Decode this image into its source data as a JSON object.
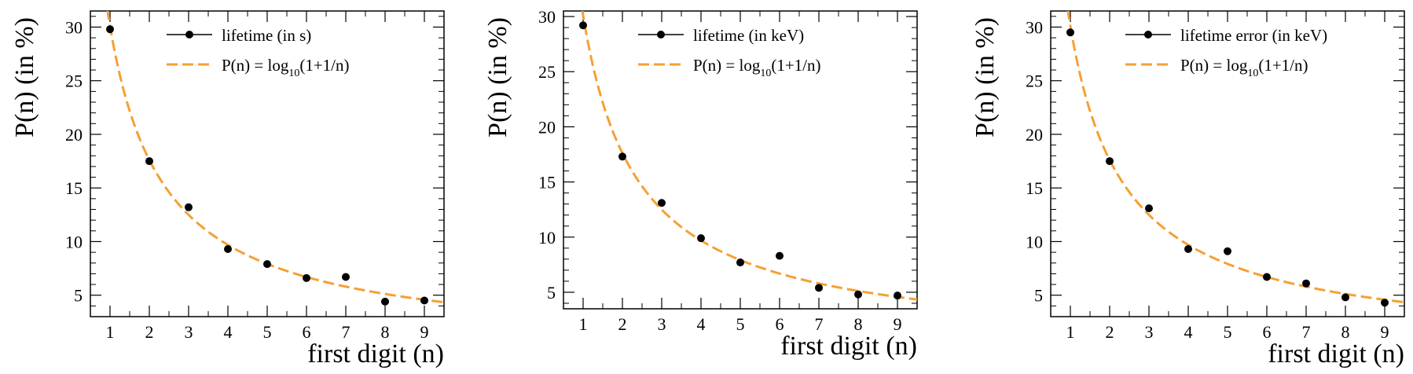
{
  "chart_data": [
    {
      "type": "scatter",
      "xlabel": "first digit (n)",
      "ylabel": "P(n) (in %)",
      "xlim": [
        0.5,
        9.5
      ],
      "ylim": [
        3.0,
        31.5
      ],
      "xticks": [
        "1",
        "2",
        "3",
        "4",
        "5",
        "6",
        "7",
        "8",
        "9"
      ],
      "yticks": [
        "5",
        "10",
        "15",
        "20",
        "25",
        "30"
      ],
      "legend_placement": "top-right",
      "series": [
        {
          "name": "lifetime (in s)",
          "kind": "points",
          "color": "#000000",
          "x": [
            1,
            2,
            3,
            4,
            5,
            6,
            7,
            8,
            9
          ],
          "y": [
            29.8,
            17.5,
            13.2,
            9.3,
            7.9,
            6.6,
            6.7,
            4.4,
            4.5
          ]
        },
        {
          "name": "P(n) = log10(1+1/n)",
          "kind": "curve",
          "color": "#f5a033",
          "style": "dashed",
          "legend_main": "P(n) = log",
          "legend_sub": "10",
          "legend_tail": "(1+1/n)"
        }
      ]
    },
    {
      "type": "scatter",
      "xlabel": "first digit (n)",
      "ylabel": "P(n) (in %)",
      "xlim": [
        0.5,
        9.5
      ],
      "ylim": [
        3.5,
        30.5
      ],
      "xticks": [
        "1",
        "2",
        "3",
        "4",
        "5",
        "6",
        "7",
        "8",
        "9"
      ],
      "yticks": [
        "5",
        "10",
        "15",
        "20",
        "25",
        "30"
      ],
      "legend_placement": "top-right",
      "series": [
        {
          "name": "lifetime (in keV)",
          "kind": "points",
          "color": "#000000",
          "x": [
            1,
            2,
            3,
            4,
            5,
            6,
            7,
            8,
            9
          ],
          "y": [
            29.2,
            17.3,
            13.1,
            9.9,
            7.7,
            8.3,
            5.4,
            4.8,
            4.7
          ]
        },
        {
          "name": "P(n) = log10(1+1/n)",
          "kind": "curve",
          "color": "#f5a033",
          "style": "dashed",
          "legend_main": "P(n) = log",
          "legend_sub": "10",
          "legend_tail": "(1+1/n)"
        }
      ]
    },
    {
      "type": "scatter",
      "xlabel": "first digit (n)",
      "ylabel": "P(n) (in %)",
      "xlim": [
        0.5,
        9.5
      ],
      "ylim": [
        3.0,
        31.5
      ],
      "xticks": [
        "1",
        "2",
        "3",
        "4",
        "5",
        "6",
        "7",
        "8",
        "9"
      ],
      "yticks": [
        "5",
        "10",
        "15",
        "20",
        "25",
        "30"
      ],
      "legend_placement": "top-right",
      "series": [
        {
          "name": "lifetime error (in keV)",
          "kind": "points",
          "color": "#000000",
          "x": [
            1,
            2,
            3,
            4,
            5,
            6,
            7,
            8,
            9
          ],
          "y": [
            29.5,
            17.5,
            13.1,
            9.3,
            9.1,
            6.7,
            6.1,
            4.8,
            4.3
          ]
        },
        {
          "name": "P(n) = log10(1+1/n)",
          "kind": "curve",
          "color": "#f5a033",
          "style": "dashed",
          "legend_main": "P(n) = log",
          "legend_sub": "10",
          "legend_tail": "(1+1/n)"
        }
      ]
    }
  ]
}
